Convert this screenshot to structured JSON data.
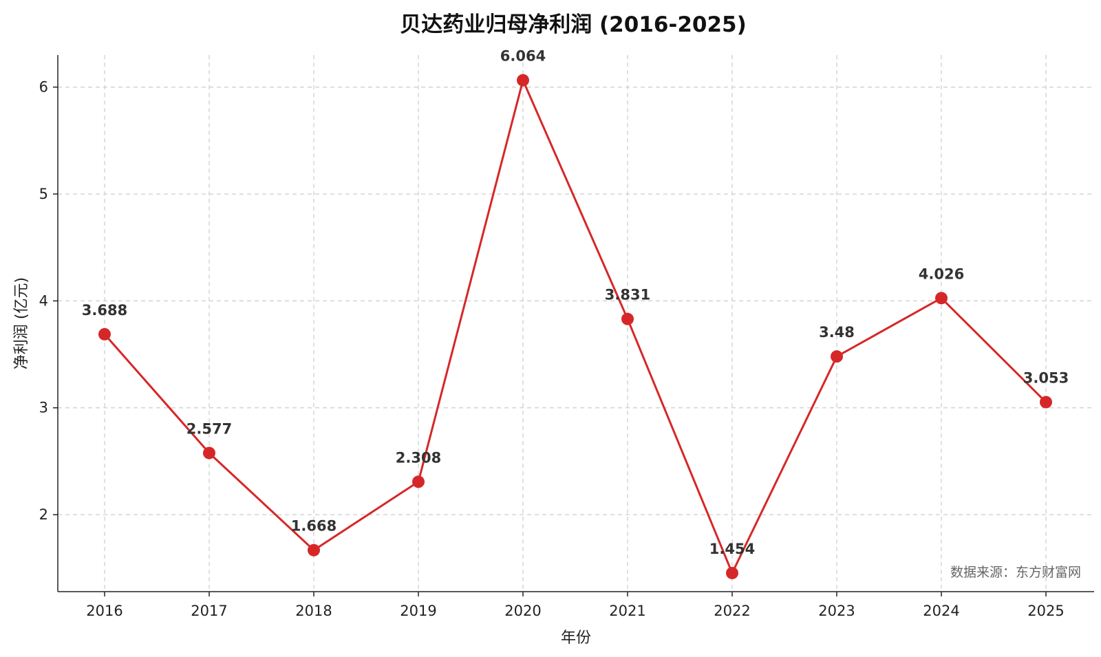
{
  "chart_data": {
    "type": "line",
    "title": "贝达药业归母净利润 (2016-2025)",
    "xlabel": "年份",
    "ylabel": "净利润 (亿元)",
    "categories": [
      "2016",
      "2017",
      "2018",
      "2019",
      "2020",
      "2021",
      "2022",
      "2023",
      "2024",
      "2025"
    ],
    "series": [
      {
        "values": [
          3.688,
          2.577,
          1.668,
          2.308,
          6.064,
          3.831,
          1.454,
          3.48,
          4.026,
          3.053
        ]
      }
    ],
    "data_labels": [
      "3.688",
      "2.577",
      "1.668",
      "2.308",
      "6.064",
      "3.831",
      "1.454",
      "3.48",
      "4.026",
      "3.053"
    ],
    "y_ticks": [
      2,
      3,
      4,
      5,
      6
    ],
    "ylim": [
      1.28,
      6.3
    ],
    "grid": true,
    "line_color": "#d62728",
    "source_note": "数据来源：东方财富网"
  }
}
